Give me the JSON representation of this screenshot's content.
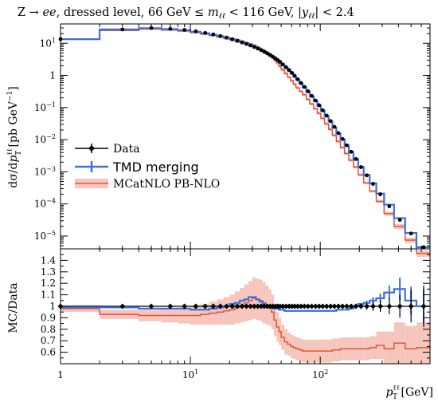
{
  "chart_data": {
    "type": "line",
    "title": "Z → ee, dressed level, 66 GeV ≤ m_ℓℓ < 116 GeV, |y_ℓℓ| < 2.4",
    "title_parts": {
      "a": "Z → ",
      "b": "ee",
      "c": ", dressed level, 66 GeV ≤ ",
      "d": "m",
      "d_sub": "ℓℓ",
      "e": " < 116 GeV, |",
      "f": "y",
      "f_sub": "ℓℓ",
      "g": "| < 2.4"
    },
    "xlabel": "p_T^ℓℓ [GeV]",
    "xlabel_parts": {
      "p": "p",
      "sup": "ℓℓ",
      "sub": "T",
      "unit": " [GeV]"
    },
    "ylabel_top": "dσ/dp_T^ℓℓ [pb GeV⁻¹]",
    "ylabel_top_parts": {
      "a": "dσ/d",
      "b": "p",
      "sup": "ℓℓ",
      "sub": "T",
      "c": " [pb GeV",
      "exp": "−1",
      "d": "]"
    },
    "ylabel_bottom": "MC/Data",
    "x_scale": "log",
    "xlim": [
      1,
      700
    ],
    "x_ticks": [
      {
        "v": 1,
        "label": "1"
      },
      {
        "v": 10,
        "label": "10",
        "sup": "1"
      },
      {
        "v": 100,
        "label": "10",
        "sup": "2"
      }
    ],
    "top_panel": {
      "y_scale": "log",
      "ylim": [
        4e-06,
        40
      ],
      "y_ticks": [
        {
          "v": 10,
          "label": "10",
          "sup": "1"
        },
        {
          "v": 1,
          "label": "1"
        },
        {
          "v": 0.1,
          "label": "10",
          "sup": "−1"
        },
        {
          "v": 0.01,
          "label": "10",
          "sup": "−2"
        },
        {
          "v": 0.001,
          "label": "10",
          "sup": "−3"
        },
        {
          "v": 0.0001,
          "label": "10",
          "sup": "−4"
        },
        {
          "v": 1e-05,
          "label": "10",
          "sup": "−5"
        }
      ]
    },
    "bottom_panel": {
      "ylim": [
        0.5,
        1.5
      ],
      "y_ticks": [
        {
          "v": 0.6,
          "label": "0.6"
        },
        {
          "v": 0.7,
          "label": "0.7"
        },
        {
          "v": 0.8,
          "label": "0.8"
        },
        {
          "v": 0.9,
          "label": "0.9"
        },
        {
          "v": 1.0,
          "label": "1"
        },
        {
          "v": 1.1,
          "label": "1.1"
        },
        {
          "v": 1.2,
          "label": "1.2"
        },
        {
          "v": 1.3,
          "label": "1.3"
        },
        {
          "v": 1.4,
          "label": "1.4"
        }
      ]
    },
    "legend": {
      "placement": "center-left",
      "entries": [
        {
          "label": "Data"
        },
        {
          "label": "TMD merging"
        },
        {
          "label": "MCatNLO PB-NLO"
        }
      ]
    },
    "colors": {
      "data": "#000000",
      "tmd": "#3b6fe0",
      "mcatnlo": "#e0553d",
      "band": "#f6c6bd"
    },
    "bins": [
      1,
      2,
      4,
      6,
      8,
      10,
      12,
      14,
      16,
      18,
      20,
      22,
      24,
      26,
      28,
      30,
      32,
      34,
      36,
      38,
      40,
      42,
      44,
      46,
      48,
      50,
      53,
      56,
      59,
      62,
      65,
      69,
      73,
      78,
      83,
      89,
      95,
      101,
      108,
      116,
      124,
      133,
      143,
      154,
      166,
      180,
      196,
      216,
      240,
      270,
      310,
      370,
      450,
      550,
      700
    ],
    "data_xsec": [
      13.5,
      27,
      30,
      28,
      26,
      23.5,
      21,
      18.8,
      16.8,
      15,
      13.4,
      12,
      10.7,
      9.6,
      8.6,
      7.7,
      6.9,
      6.15,
      5.5,
      4.9,
      4.35,
      3.85,
      3.4,
      3.0,
      2.65,
      2.2,
      1.8,
      1.47,
      1.2,
      0.97,
      0.76,
      0.58,
      0.44,
      0.32,
      0.23,
      0.165,
      0.118,
      0.082,
      0.056,
      0.038,
      0.025,
      0.016,
      0.0105,
      0.0067,
      0.0042,
      0.0025,
      0.0014,
      0.00078,
      0.00042,
      0.0002,
      8.5e-05,
      3.2e-05,
      1.2e-05,
      4.5e-06
    ],
    "tmd_xsec": [
      13.4,
      27,
      29.5,
      27.6,
      25.5,
      22.8,
      20.4,
      18.4,
      16.6,
      15,
      13.6,
      12.3,
      11.1,
      10.1,
      9.2,
      8.3,
      7.3,
      6.4,
      5.6,
      4.9,
      4.3,
      3.8,
      3.3,
      2.9,
      2.56,
      2.13,
      1.73,
      1.41,
      1.15,
      0.93,
      0.73,
      0.56,
      0.42,
      0.305,
      0.221,
      0.158,
      0.113,
      0.079,
      0.054,
      0.0365,
      0.024,
      0.0155,
      0.0102,
      0.0065,
      0.0041,
      0.0025,
      0.00143,
      0.0008,
      0.00044,
      0.00021,
      9.5e-05,
      3.6e-05,
      1.25e-05,
      4.5e-06
    ],
    "mcatnlo_xsec": [
      13.3,
      25,
      27.6,
      25.9,
      24.1,
      21.7,
      19.5,
      17.6,
      15.9,
      14.3,
      12.9,
      11.8,
      10.7,
      9.8,
      9.0,
      8.2,
      7.3,
      6.5,
      5.7,
      4.95,
      4.3,
      3.65,
      3.0,
      2.45,
      1.95,
      1.5,
      1.15,
      0.88,
      0.68,
      0.53,
      0.41,
      0.32,
      0.25,
      0.18,
      0.13,
      0.093,
      0.066,
      0.046,
      0.031,
      0.021,
      0.0137,
      0.0088,
      0.0057,
      0.0037,
      0.0023,
      0.0014,
      0.0008,
      0.00045,
      0.00025,
      0.00012,
      5e-05,
      2e-05,
      7.5e-06,
      2.9e-06
    ],
    "data_ratio_err": [
      0.005,
      0.005,
      0.005,
      0.005,
      0.005,
      0.005,
      0.005,
      0.005,
      0.005,
      0.005,
      0.005,
      0.005,
      0.005,
      0.005,
      0.005,
      0.005,
      0.005,
      0.005,
      0.005,
      0.005,
      0.005,
      0.005,
      0.005,
      0.005,
      0.005,
      0.005,
      0.005,
      0.005,
      0.005,
      0.005,
      0.005,
      0.005,
      0.005,
      0.005,
      0.005,
      0.005,
      0.005,
      0.005,
      0.005,
      0.006,
      0.007,
      0.008,
      0.01,
      0.012,
      0.014,
      0.018,
      0.022,
      0.03,
      0.04,
      0.05,
      0.07,
      0.1,
      0.14,
      0.18
    ],
    "ratio_tmd": [
      0.99,
      0.99,
      0.98,
      0.98,
      0.98,
      0.97,
      0.97,
      0.98,
      0.99,
      1.0,
      1.02,
      1.03,
      1.05,
      1.06,
      1.08,
      1.08,
      1.06,
      1.04,
      1.02,
      1.0,
      0.99,
      0.99,
      0.98,
      0.98,
      0.97,
      0.97,
      0.96,
      0.96,
      0.96,
      0.96,
      0.96,
      0.96,
      0.96,
      0.96,
      0.96,
      0.96,
      0.96,
      0.96,
      0.96,
      0.96,
      0.96,
      0.97,
      0.97,
      0.97,
      0.98,
      1.0,
      1.02,
      1.03,
      1.05,
      1.07,
      1.12,
      1.15,
      1.05,
      1.0
    ],
    "ratio_tmd_err": [
      0.005,
      0.005,
      0.005,
      0.005,
      0.005,
      0.005,
      0.005,
      0.005,
      0.005,
      0.005,
      0.005,
      0.005,
      0.005,
      0.005,
      0.005,
      0.005,
      0.005,
      0.005,
      0.005,
      0.005,
      0.005,
      0.005,
      0.005,
      0.005,
      0.005,
      0.005,
      0.005,
      0.005,
      0.005,
      0.005,
      0.005,
      0.005,
      0.005,
      0.005,
      0.005,
      0.005,
      0.005,
      0.005,
      0.005,
      0.005,
      0.005,
      0.006,
      0.006,
      0.008,
      0.01,
      0.012,
      0.015,
      0.02,
      0.03,
      0.04,
      0.06,
      0.1,
      0.12,
      0.15
    ],
    "ratio_mcatnlo": [
      0.98,
      0.93,
      0.92,
      0.92,
      0.92,
      0.92,
      0.93,
      0.94,
      0.95,
      0.96,
      0.97,
      0.99,
      1.01,
      1.03,
      1.05,
      1.07,
      1.06,
      1.05,
      1.03,
      1.01,
      0.99,
      0.95,
      0.88,
      0.82,
      0.78,
      0.73,
      0.69,
      0.67,
      0.65,
      0.64,
      0.63,
      0.62,
      0.61,
      0.61,
      0.61,
      0.61,
      0.61,
      0.61,
      0.61,
      0.61,
      0.62,
      0.62,
      0.63,
      0.63,
      0.63,
      0.63,
      0.63,
      0.63,
      0.64,
      0.66,
      0.63,
      0.68,
      0.63,
      0.64
    ],
    "band_mcatnlo": [
      0.03,
      0.04,
      0.05,
      0.06,
      0.07,
      0.08,
      0.09,
      0.1,
      0.11,
      0.12,
      0.13,
      0.14,
      0.15,
      0.16,
      0.17,
      0.18,
      0.18,
      0.18,
      0.18,
      0.17,
      0.16,
      0.15,
      0.14,
      0.13,
      0.12,
      0.11,
      0.11,
      0.1,
      0.1,
      0.1,
      0.1,
      0.1,
      0.1,
      0.1,
      0.1,
      0.1,
      0.1,
      0.1,
      0.1,
      0.1,
      0.1,
      0.1,
      0.1,
      0.1,
      0.1,
      0.1,
      0.1,
      0.1,
      0.1,
      0.12,
      0.15,
      0.18,
      0.2,
      0.22
    ],
    "data_marker_centers": [
      1,
      3,
      5,
      7,
      9,
      11,
      13,
      15,
      17,
      19,
      21,
      23,
      25,
      27,
      29,
      31,
      33,
      35,
      37,
      39,
      41,
      43,
      45,
      47,
      49,
      51.5,
      54.5,
      57.5,
      60.5,
      63.5,
      67,
      71,
      75.5,
      80.5,
      86,
      92,
      98,
      104.5,
      112,
      120,
      128.5,
      138,
      148.5,
      160,
      173,
      188,
      206,
      228,
      255,
      290,
      340,
      410,
      500,
      625
    ]
  }
}
